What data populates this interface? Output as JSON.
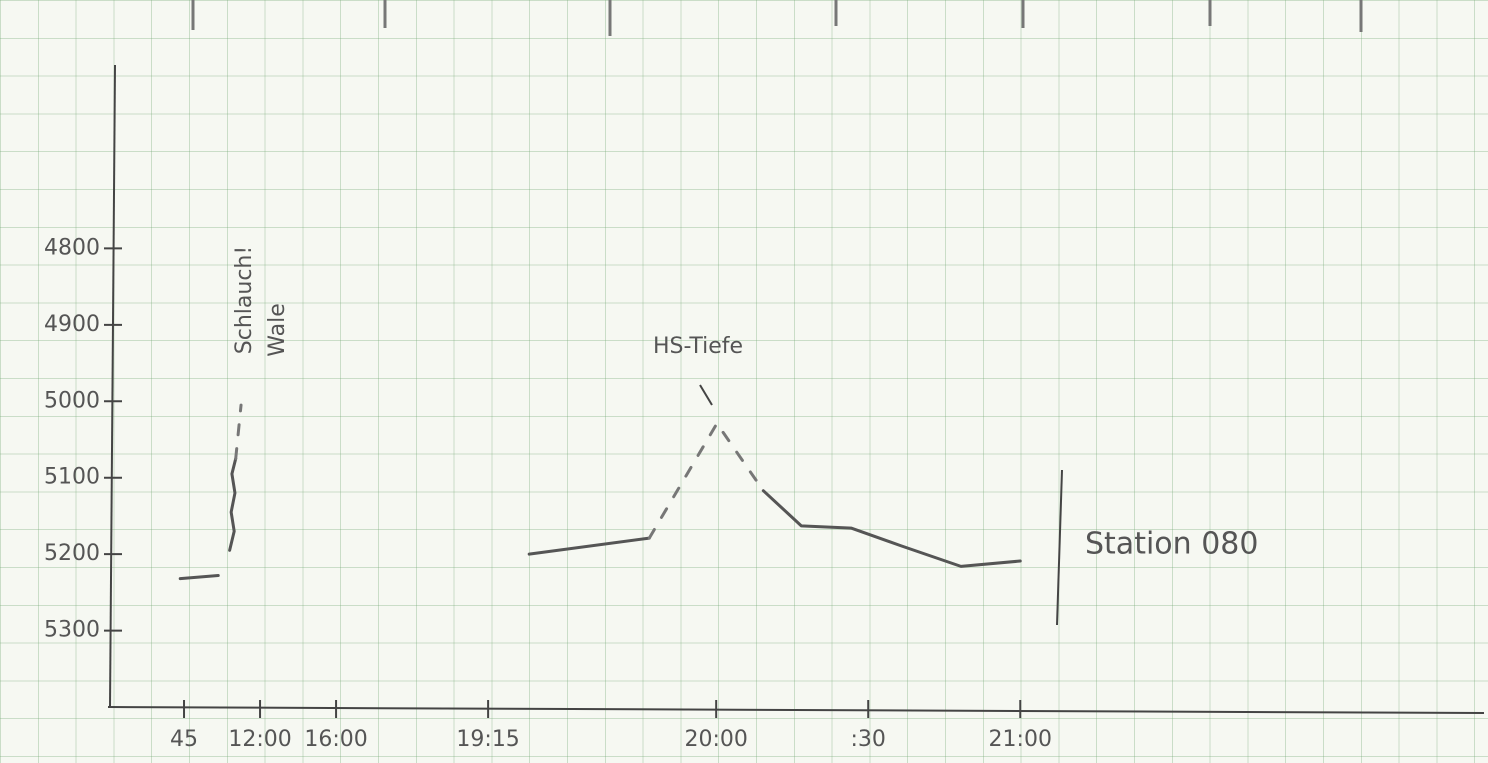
{
  "chart_data": {
    "type": "line",
    "annotations": [
      "Schlauch!",
      "Wale",
      "HS-Tiefe",
      "Station 080"
    ],
    "xlim": [
      -1,
      17.1
    ],
    "xticks": [
      {
        "value": 0,
        "label": "45"
      },
      {
        "value": 1,
        "label": "12:00"
      },
      {
        "value": 2,
        "label": "16:00"
      },
      {
        "value": 4,
        "label": "19:15"
      },
      {
        "value": 7,
        "label": "20:00"
      },
      {
        "value": 9,
        "label": ":30"
      },
      {
        "value": 11,
        "label": "21:00"
      }
    ],
    "ylim": [
      5400,
      4560
    ],
    "yticks": [
      4800,
      4900,
      5000,
      5100,
      5200,
      5300
    ],
    "series": [
      {
        "color": "#555555",
        "style": "solid",
        "x": [
          -0.05,
          0.45,
          null,
          0.6,
          0.66,
          0.62,
          0.67,
          0.63,
          0.68,
          null,
          4.54,
          6.12,
          null,
          7.62,
          8.12,
          8.78,
          9.43,
          10.22,
          11
        ],
        "values": [
          5232,
          5228,
          null,
          5195,
          5170,
          5145,
          5120,
          5095,
          5075,
          null,
          5200,
          5179,
          null,
          5117,
          5163,
          5166,
          5189,
          5216,
          5209
        ]
      },
      {
        "color": "#777777",
        "style": "dashed",
        "x": [
          0.68,
          0.75,
          null,
          6.12,
          7.01,
          7.62
        ],
        "values": [
          5075,
          5005,
          null,
          5179,
          5029,
          5117
        ]
      }
    ]
  }
}
